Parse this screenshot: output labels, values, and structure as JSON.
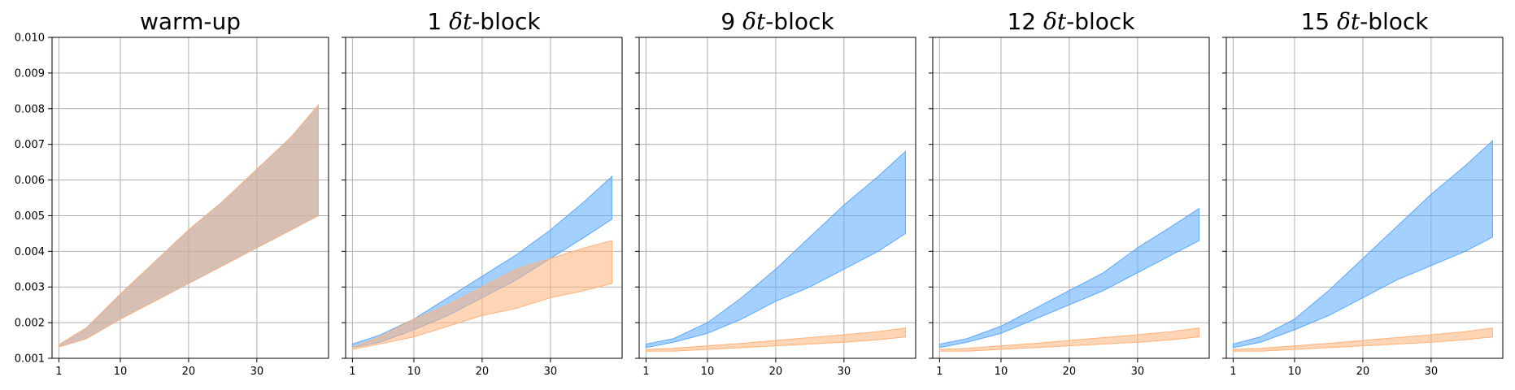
{
  "chart_data": [
    {
      "type": "area",
      "title": "warm-up",
      "title_html": "warm-up",
      "xlim": [
        0,
        40.5
      ],
      "ylim": [
        0.001,
        0.01
      ],
      "xticks": [
        1,
        10,
        20,
        30
      ],
      "yticks": [
        0.001,
        0.002,
        0.003,
        0.004,
        0.005,
        0.006,
        0.007,
        0.008,
        0.009,
        0.01
      ],
      "ytick_labels": [
        "0.001",
        "0.002",
        "0.003",
        "0.004",
        "0.005",
        "0.006",
        "0.007",
        "0.008",
        "0.009",
        "0.010"
      ],
      "show_yticklabels": true,
      "grid": true,
      "series": [
        {
          "color": "#5aa9ff",
          "x": [
            1,
            5,
            10,
            15,
            20,
            25,
            30,
            35,
            39
          ],
          "upper": [
            0.00138,
            0.00185,
            0.0028,
            0.0037,
            0.0046,
            0.0054,
            0.0063,
            0.0072,
            0.0081
          ],
          "lower": [
            0.00132,
            0.00155,
            0.0021,
            0.0026,
            0.0031,
            0.0036,
            0.0041,
            0.0046,
            0.005
          ]
        },
        {
          "color": "#ffb27a",
          "x": [
            1,
            5,
            10,
            15,
            20,
            25,
            30,
            35,
            39
          ],
          "upper": [
            0.00138,
            0.00185,
            0.0028,
            0.0037,
            0.0046,
            0.0054,
            0.0063,
            0.0072,
            0.0081
          ],
          "lower": [
            0.00132,
            0.00155,
            0.0021,
            0.0026,
            0.0031,
            0.0036,
            0.0041,
            0.0046,
            0.005
          ]
        }
      ]
    },
    {
      "type": "area",
      "title": "1 δt-block",
      "title_html": "1 <tspan font-family='DejaVu Serif, serif' font-style='italic'>δt</tspan>-block",
      "xlim": [
        0,
        40.5
      ],
      "ylim": [
        0.001,
        0.01
      ],
      "xticks": [
        1,
        10,
        20,
        30
      ],
      "show_yticklabels": false,
      "grid": true,
      "series": [
        {
          "color": "#5aa9ff",
          "x": [
            1,
            5,
            10,
            15,
            20,
            25,
            30,
            35,
            39
          ],
          "upper": [
            0.0014,
            0.00165,
            0.0021,
            0.0027,
            0.0033,
            0.0039,
            0.0046,
            0.0054,
            0.0061
          ],
          "lower": [
            0.0013,
            0.00145,
            0.0018,
            0.0022,
            0.0027,
            0.0032,
            0.0038,
            0.0044,
            0.0049
          ]
        },
        {
          "color": "#ffb27a",
          "x": [
            1,
            5,
            10,
            15,
            20,
            25,
            30,
            35,
            39
          ],
          "upper": [
            0.0013,
            0.0016,
            0.0021,
            0.0025,
            0.003,
            0.0035,
            0.0038,
            0.0041,
            0.0043
          ],
          "lower": [
            0.00125,
            0.0014,
            0.0016,
            0.0019,
            0.0022,
            0.0024,
            0.0027,
            0.0029,
            0.0031
          ]
        }
      ]
    },
    {
      "type": "area",
      "title": "9 δt-block",
      "title_html": "9 <tspan font-family='DejaVu Serif, serif' font-style='italic'>δt</tspan>-block",
      "xlim": [
        0,
        40.5
      ],
      "ylim": [
        0.001,
        0.01
      ],
      "xticks": [
        1,
        10,
        20,
        30
      ],
      "show_yticklabels": false,
      "grid": true,
      "series": [
        {
          "color": "#5aa9ff",
          "x": [
            1,
            5,
            10,
            15,
            20,
            25,
            30,
            35,
            39
          ],
          "upper": [
            0.0014,
            0.00155,
            0.002,
            0.0027,
            0.0035,
            0.0044,
            0.0053,
            0.0061,
            0.0068
          ],
          "lower": [
            0.0013,
            0.00145,
            0.0017,
            0.0021,
            0.0026,
            0.003,
            0.0035,
            0.004,
            0.0045
          ]
        },
        {
          "color": "#ffb27a",
          "x": [
            1,
            5,
            10,
            15,
            20,
            25,
            30,
            35,
            39
          ],
          "upper": [
            0.00125,
            0.00128,
            0.00135,
            0.00142,
            0.0015,
            0.00158,
            0.00166,
            0.00175,
            0.00185
          ],
          "lower": [
            0.0012,
            0.0012,
            0.00125,
            0.0013,
            0.00135,
            0.0014,
            0.00145,
            0.00152,
            0.0016
          ]
        }
      ]
    },
    {
      "type": "area",
      "title": "12 δt-block",
      "title_html": "12 <tspan font-family='DejaVu Serif, serif' font-style='italic'>δt</tspan>-block",
      "xlim": [
        0,
        40.5
      ],
      "ylim": [
        0.001,
        0.01
      ],
      "xticks": [
        1,
        10,
        20,
        30
      ],
      "show_yticklabels": false,
      "grid": true,
      "series": [
        {
          "color": "#5aa9ff",
          "x": [
            1,
            5,
            10,
            15,
            20,
            25,
            30,
            35,
            39
          ],
          "upper": [
            0.0014,
            0.00155,
            0.0019,
            0.0024,
            0.0029,
            0.0034,
            0.0041,
            0.0047,
            0.0052
          ],
          "lower": [
            0.0013,
            0.00145,
            0.0017,
            0.0021,
            0.0025,
            0.0029,
            0.0034,
            0.0039,
            0.0043
          ]
        },
        {
          "color": "#ffb27a",
          "x": [
            1,
            5,
            10,
            15,
            20,
            25,
            30,
            35,
            39
          ],
          "upper": [
            0.00125,
            0.00128,
            0.00135,
            0.00142,
            0.0015,
            0.00158,
            0.00166,
            0.00175,
            0.00185
          ],
          "lower": [
            0.0012,
            0.0012,
            0.00125,
            0.0013,
            0.00135,
            0.0014,
            0.00145,
            0.00152,
            0.0016
          ]
        }
      ]
    },
    {
      "type": "area",
      "title": "15 δt-block",
      "title_html": "15 <tspan font-family='DejaVu Serif, serif' font-style='italic'>δt</tspan>-block",
      "xlim": [
        0,
        40.5
      ],
      "ylim": [
        0.001,
        0.01
      ],
      "xticks": [
        1,
        10,
        20,
        30
      ],
      "show_yticklabels": false,
      "grid": true,
      "series": [
        {
          "color": "#5aa9ff",
          "x": [
            1,
            5,
            10,
            15,
            20,
            25,
            30,
            35,
            39
          ],
          "upper": [
            0.0014,
            0.0016,
            0.0021,
            0.0029,
            0.0038,
            0.0047,
            0.0056,
            0.0064,
            0.0071
          ],
          "lower": [
            0.0013,
            0.00145,
            0.0018,
            0.0022,
            0.0027,
            0.0032,
            0.0036,
            0.004,
            0.0044
          ]
        },
        {
          "color": "#ffb27a",
          "x": [
            1,
            5,
            10,
            15,
            20,
            25,
            30,
            35,
            39
          ],
          "upper": [
            0.00125,
            0.00128,
            0.00135,
            0.00142,
            0.0015,
            0.00158,
            0.00166,
            0.00175,
            0.00185
          ],
          "lower": [
            0.0012,
            0.0012,
            0.00125,
            0.0013,
            0.00135,
            0.0014,
            0.00145,
            0.00152,
            0.0016
          ]
        }
      ]
    }
  ]
}
